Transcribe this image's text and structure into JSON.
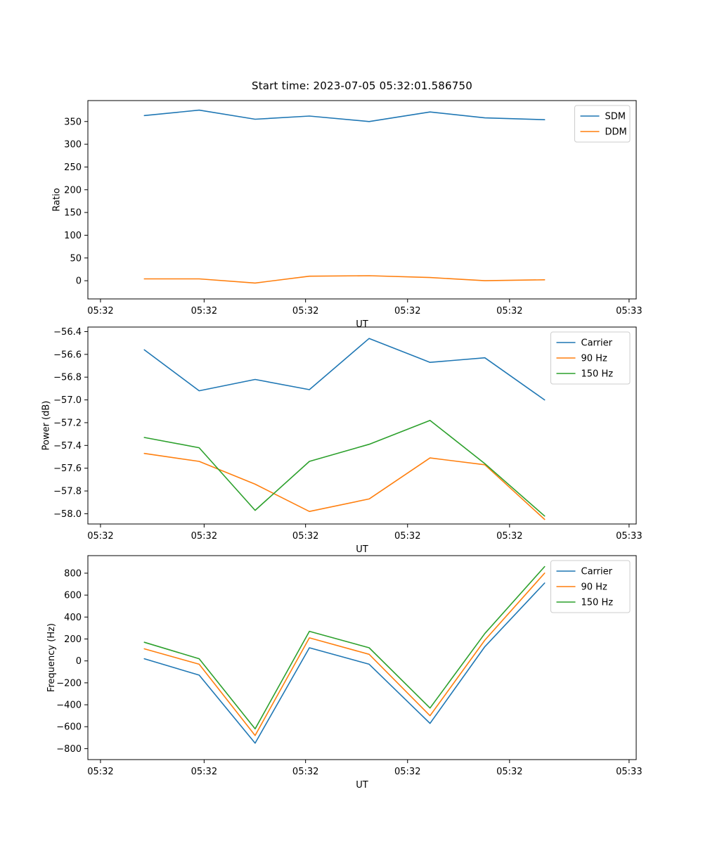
{
  "figure": {
    "background_color": "#ffffff",
    "axis_color": "#000000"
  },
  "chart_data": [
    {
      "id": "ratio-plot",
      "type": "line",
      "title": "Start time: 2023-07-05 05:32:01.586750",
      "xlabel": "UT",
      "ylabel": "Ratio",
      "ylim": [
        -40,
        396
      ],
      "yticks": [
        0,
        50,
        100,
        150,
        200,
        250,
        300,
        350
      ],
      "ytick_labels": [
        "0",
        "50",
        "100",
        "150",
        "200",
        "250",
        "300",
        "350"
      ],
      "xtick_positions": [
        0.023,
        0.212,
        0.397,
        0.583,
        0.769,
        0.987
      ],
      "xtick_labels": [
        "05:32",
        "05:32",
        "05:32",
        "05:32",
        "05:32",
        "05:33"
      ],
      "x_positions": [
        0.103,
        0.203,
        0.305,
        0.404,
        0.513,
        0.624,
        0.724,
        0.833
      ],
      "series": [
        {
          "name": "SDM",
          "color": "#1f77b4",
          "values": [
            363,
            375,
            355,
            362,
            350,
            371,
            358,
            354
          ]
        },
        {
          "name": "DDM",
          "color": "#ff7f0e",
          "values": [
            4,
            4,
            -5,
            10,
            11,
            7,
            0,
            2
          ]
        }
      ],
      "legend": {
        "position": "upper right",
        "labels": [
          "SDM",
          "DDM"
        ]
      }
    },
    {
      "id": "power-plot",
      "type": "line",
      "title": "",
      "xlabel": "UT",
      "ylabel": "Power (dB)",
      "ylim": [
        -58.09,
        -56.36
      ],
      "yticks": [
        -58.0,
        -57.8,
        -57.6,
        -57.4,
        -57.2,
        -57.0,
        -56.8,
        -56.6,
        -56.4
      ],
      "ytick_labels": [
        "−58.0",
        "−57.8",
        "−57.6",
        "−57.4",
        "−57.2",
        "−57.0",
        "−56.8",
        "−56.6",
        "−56.4"
      ],
      "xtick_positions": [
        0.023,
        0.212,
        0.397,
        0.583,
        0.769,
        0.987
      ],
      "xtick_labels": [
        "05:32",
        "05:32",
        "05:32",
        "05:32",
        "05:32",
        "05:33"
      ],
      "x_positions": [
        0.103,
        0.203,
        0.305,
        0.404,
        0.513,
        0.624,
        0.724,
        0.833
      ],
      "series": [
        {
          "name": "Carrier",
          "color": "#1f77b4",
          "values": [
            -56.56,
            -56.92,
            -56.82,
            -56.91,
            -56.46,
            -56.67,
            -56.63,
            -57.0
          ]
        },
        {
          "name": "90 Hz",
          "color": "#ff7f0e",
          "values": [
            -57.47,
            -57.54,
            -57.74,
            -57.98,
            -57.87,
            -57.51,
            -57.57,
            -58.05
          ]
        },
        {
          "name": "150 Hz",
          "color": "#2ca02c",
          "values": [
            -57.33,
            -57.42,
            -57.97,
            -57.54,
            -57.39,
            -57.18,
            -57.56,
            -58.02
          ]
        }
      ],
      "legend": {
        "position": "upper right",
        "labels": [
          "Carrier",
          "90 Hz",
          "150 Hz"
        ]
      }
    },
    {
      "id": "frequency-plot",
      "type": "line",
      "title": "",
      "xlabel": "UT",
      "ylabel": "Frequency (Hz)",
      "ylim": [
        -900,
        960
      ],
      "yticks": [
        -800,
        -600,
        -400,
        -200,
        0,
        200,
        400,
        600,
        800
      ],
      "ytick_labels": [
        "−800",
        "−600",
        "−400",
        "−200",
        "0",
        "200",
        "400",
        "600",
        "800"
      ],
      "xtick_positions": [
        0.023,
        0.212,
        0.397,
        0.583,
        0.769,
        0.987
      ],
      "xtick_labels": [
        "05:32",
        "05:32",
        "05:32",
        "05:32",
        "05:32",
        "05:33"
      ],
      "x_positions": [
        0.103,
        0.203,
        0.305,
        0.404,
        0.513,
        0.624,
        0.724,
        0.833
      ],
      "series": [
        {
          "name": "Carrier",
          "color": "#1f77b4",
          "values": [
            20,
            -130,
            -750,
            120,
            -30,
            -570,
            130,
            710
          ]
        },
        {
          "name": "90 Hz",
          "color": "#ff7f0e",
          "values": [
            110,
            -30,
            -680,
            210,
            60,
            -500,
            190,
            800
          ]
        },
        {
          "name": "150 Hz",
          "color": "#2ca02c",
          "values": [
            170,
            20,
            -620,
            270,
            120,
            -430,
            250,
            860
          ]
        }
      ],
      "legend": {
        "position": "upper right",
        "labels": [
          "Carrier",
          "90 Hz",
          "150 Hz"
        ]
      }
    }
  ]
}
